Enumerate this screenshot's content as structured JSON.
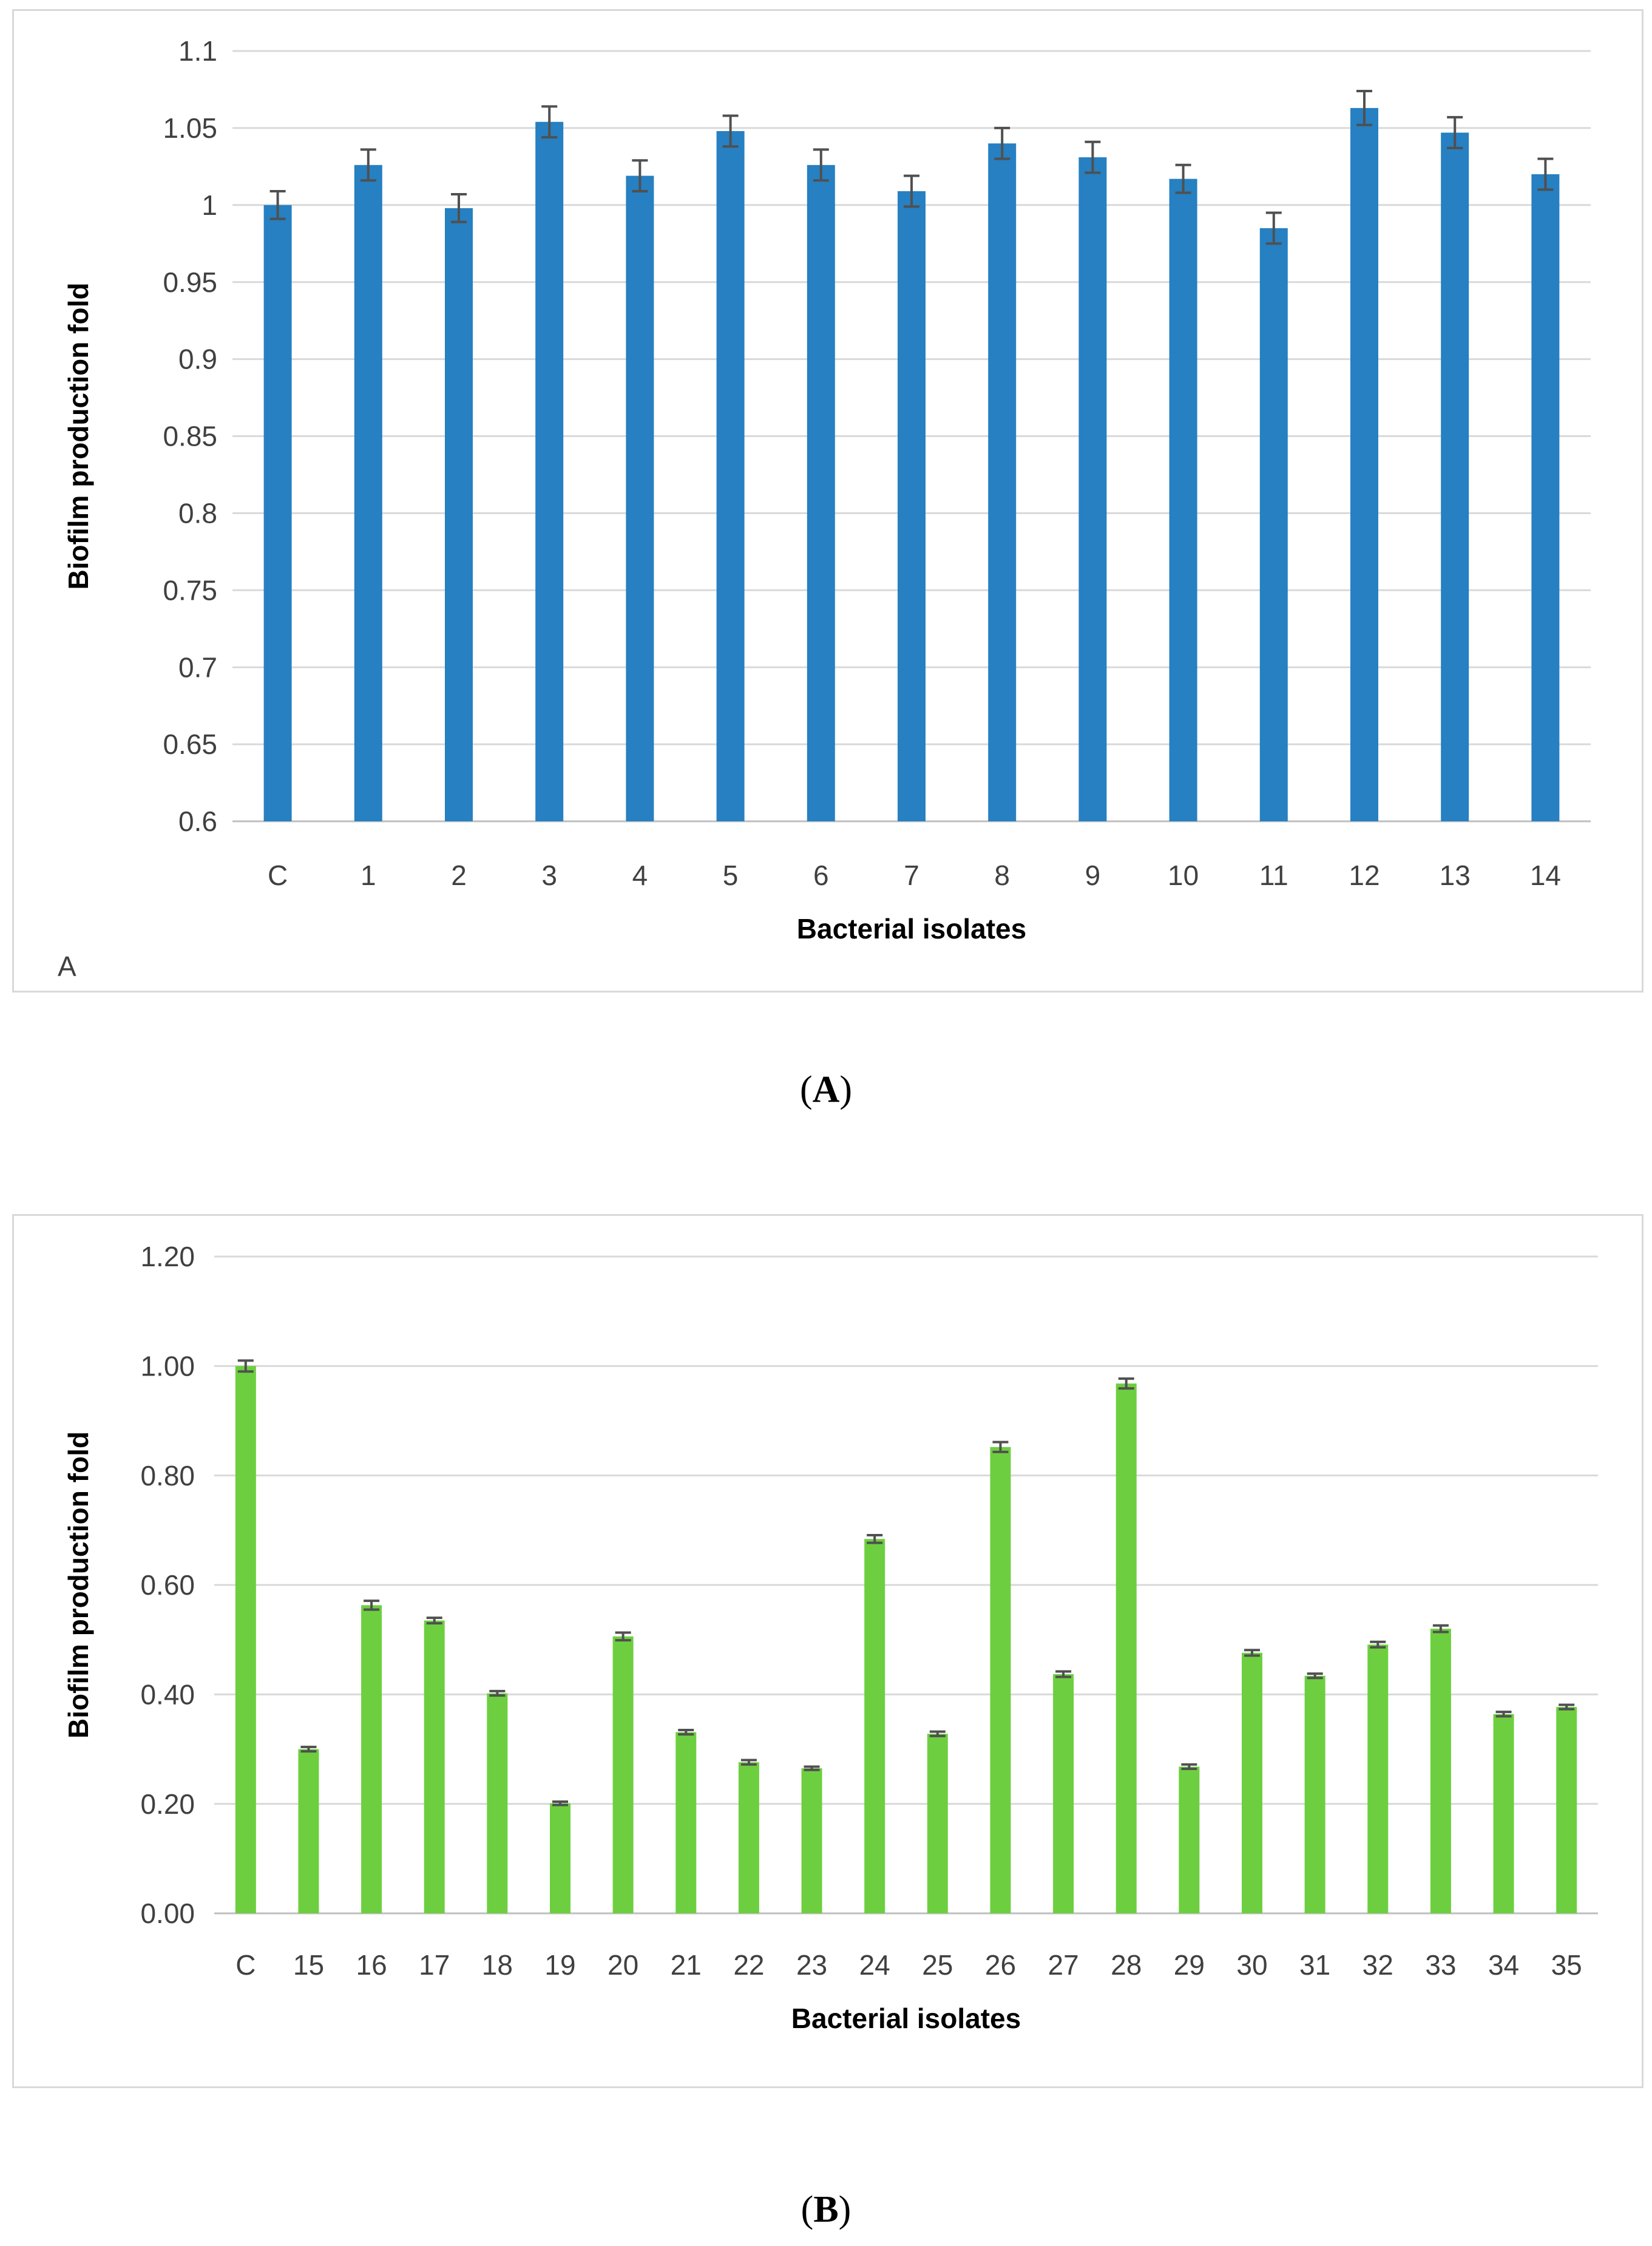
{
  "chart_data": [
    {
      "type": "bar",
      "panel_letter": "A",
      "title": "",
      "xlabel": "Bacterial isolates",
      "ylabel": "Biofilm production fold",
      "ylim": [
        0.6,
        1.1
      ],
      "yticks": [
        "0.6",
        "0.65",
        "0.7",
        "0.75",
        "0.8",
        "0.85",
        "0.9",
        "0.95",
        "1",
        "1.05",
        "1.1"
      ],
      "ytick_values": [
        0.6,
        0.65,
        0.7,
        0.75,
        0.8,
        0.85,
        0.9,
        0.95,
        1.0,
        1.05,
        1.1
      ],
      "categories": [
        "C",
        "1",
        "2",
        "3",
        "4",
        "5",
        "6",
        "7",
        "8",
        "9",
        "10",
        "11",
        "12",
        "13",
        "14"
      ],
      "values": [
        1.0,
        1.026,
        0.998,
        1.054,
        1.019,
        1.048,
        1.026,
        1.009,
        1.04,
        1.031,
        1.017,
        0.985,
        1.063,
        1.047,
        1.02
      ],
      "errors": [
        0.009,
        0.01,
        0.009,
        0.01,
        0.01,
        0.01,
        0.01,
        0.01,
        0.01,
        0.01,
        0.009,
        0.01,
        0.011,
        0.01,
        0.01
      ],
      "bar_color": "#2680c2",
      "error_color": "#505050"
    },
    {
      "type": "bar",
      "title": "",
      "xlabel": "Bacterial isolates",
      "ylabel": "Biofilm production fold",
      "ylim": [
        0.0,
        1.2
      ],
      "yticks": [
        "0.00",
        "0.20",
        "0.40",
        "0.60",
        "0.80",
        "1.00",
        "1.20"
      ],
      "ytick_values": [
        0.0,
        0.2,
        0.4,
        0.6,
        0.8,
        1.0,
        1.2
      ],
      "categories": [
        "C",
        "15",
        "16",
        "17",
        "18",
        "19",
        "20",
        "21",
        "22",
        "23",
        "24",
        "25",
        "26",
        "27",
        "28",
        "29",
        "30",
        "31",
        "32",
        "33",
        "34",
        "35"
      ],
      "values": [
        1.0,
        0.3,
        0.563,
        0.535,
        0.402,
        0.201,
        0.506,
        0.331,
        0.276,
        0.265,
        0.684,
        0.328,
        0.852,
        0.437,
        0.968,
        0.268,
        0.476,
        0.434,
        0.491,
        0.52,
        0.364,
        0.377
      ],
      "errors": [
        0.01,
        0.004,
        0.008,
        0.005,
        0.004,
        0.003,
        0.007,
        0.004,
        0.004,
        0.003,
        0.007,
        0.004,
        0.009,
        0.005,
        0.009,
        0.004,
        0.005,
        0.004,
        0.005,
        0.006,
        0.004,
        0.004
      ],
      "bar_color": "#6dcf3f",
      "error_color": "#505050"
    }
  ],
  "captions": {
    "a": "A",
    "b": "B"
  }
}
